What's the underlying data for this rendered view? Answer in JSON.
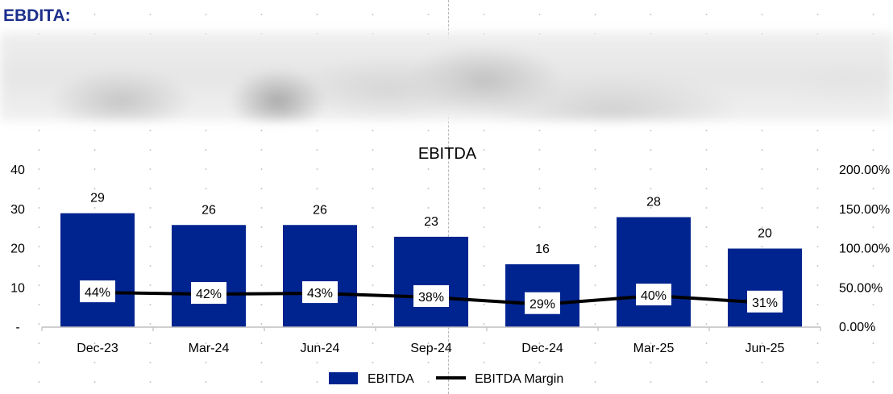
{
  "section_title": "EBDITA:",
  "chart_data": {
    "type": "bar",
    "title": "EBITDA",
    "categories": [
      "Dec-23",
      "Mar-24",
      "Jun-24",
      "Sep-24",
      "Dec-24",
      "Mar-25",
      "Jun-25"
    ],
    "series": [
      {
        "name": "EBITDA",
        "type": "bar",
        "axis": "left",
        "color": "#00248f",
        "values": [
          29,
          26,
          26,
          23,
          16,
          28,
          20
        ],
        "labels": [
          "29",
          "26",
          "26",
          "23",
          "16",
          "28",
          "20"
        ]
      },
      {
        "name": "EBITDA Margin",
        "type": "line",
        "axis": "right",
        "color": "#000000",
        "values": [
          44,
          42,
          43,
          38,
          29,
          40,
          31
        ],
        "labels": [
          "44%",
          "42%",
          "43%",
          "38%",
          "29%",
          "40%",
          "31%"
        ]
      }
    ],
    "y_left": {
      "ylim": [
        0,
        40
      ],
      "ticks": [
        "-",
        "10",
        "20",
        "30",
        "40"
      ]
    },
    "y_right": {
      "ylim": [
        0,
        200
      ],
      "ticks": [
        "0.00%",
        "50.00%",
        "100.00%",
        "150.00%",
        "200.00%"
      ]
    },
    "legend": {
      "position": "bottom",
      "items": [
        "EBITDA",
        "EBITDA Margin"
      ]
    }
  }
}
